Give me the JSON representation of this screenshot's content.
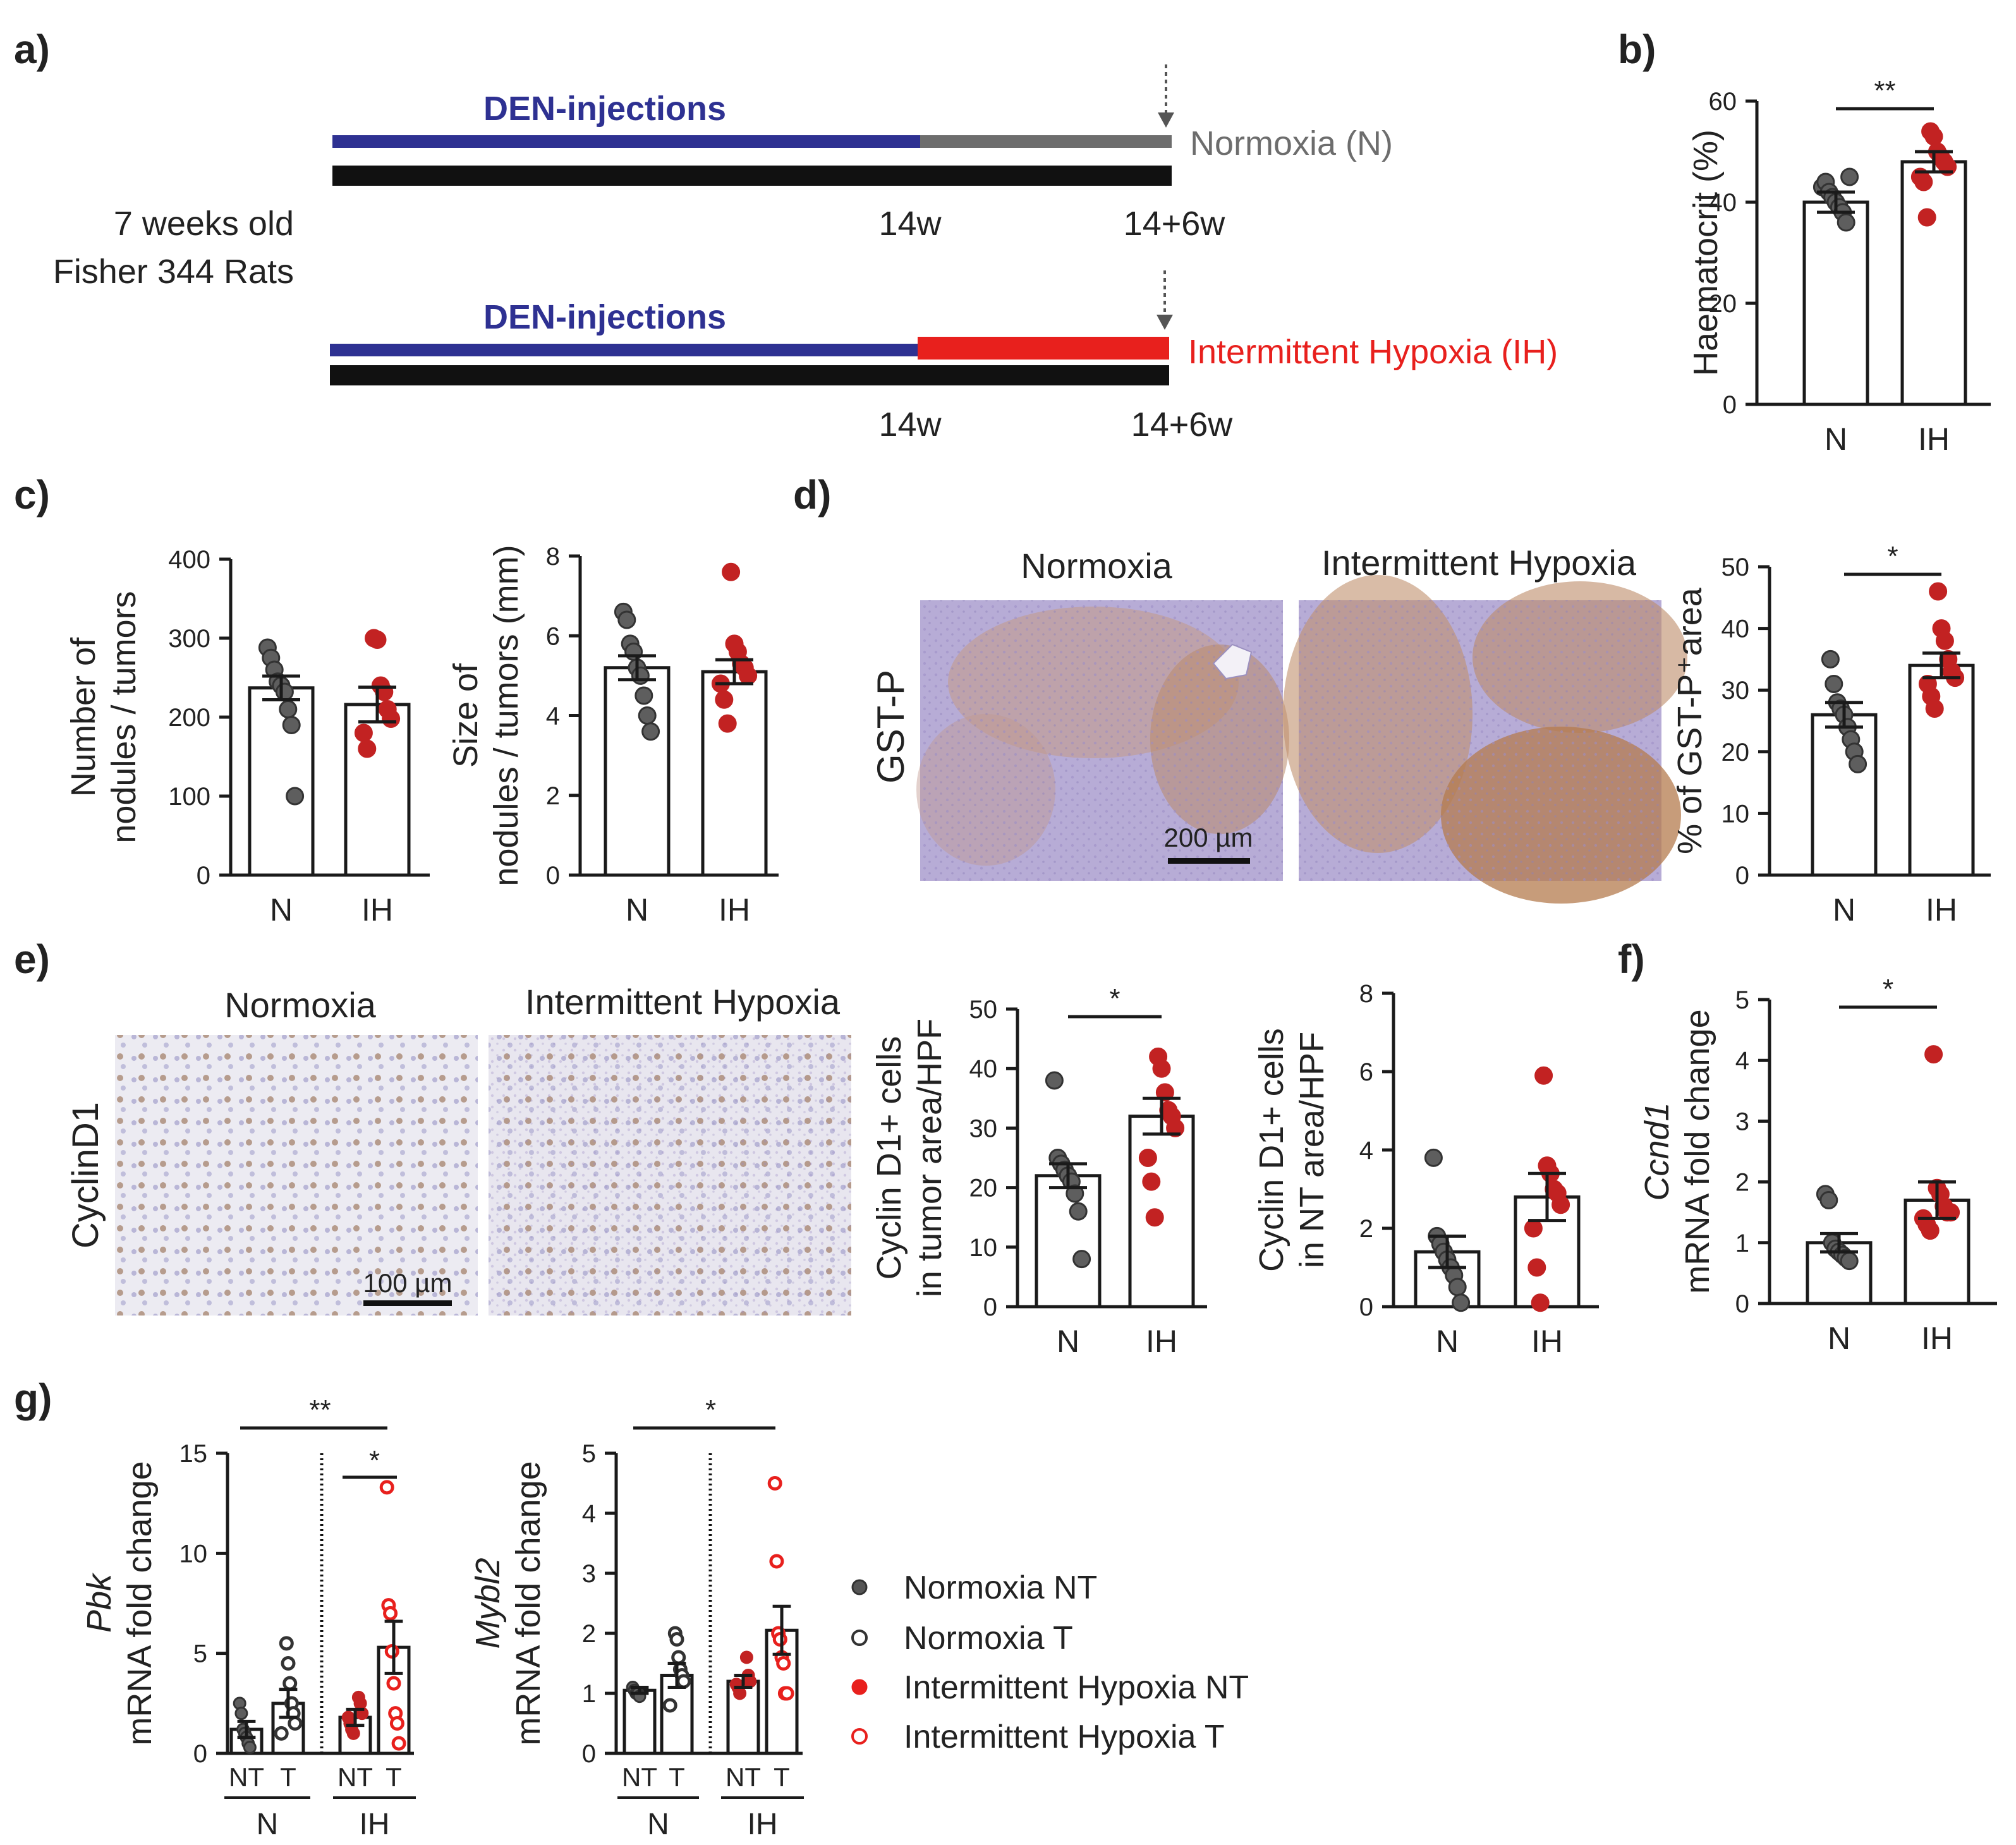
{
  "colors": {
    "axis": "#1a1a1a",
    "den_line": "#2e3192",
    "normoxia_line": "#6d6d6d",
    "hypoxia_line": "#e8201d",
    "normoxia_dot": "#5e5e5e",
    "hypoxia_dot": "#c22222",
    "tissue": "#b8a9d4",
    "stain": "#b07a45"
  },
  "panel_a": {
    "label": "a)",
    "rats_line1": "7 weeks old",
    "rats_line2": "Fisher 344 Rats",
    "den_label": "DEN-injections",
    "normoxia_label": "Normoxia (N)",
    "hypoxia_label": "Intermittent Hypoxia (IH)",
    "t14": "14w",
    "t20": "14+6w"
  },
  "panel_labels": {
    "b": "b)",
    "c": "c)",
    "d": "d)",
    "e": "e)",
    "f": "f)",
    "g": "g)"
  },
  "images": {
    "d_title_left": "Normoxia",
    "d_title_right": "Intermittent Hypoxia",
    "d_side": "GST-P",
    "d_scale": "200 µm",
    "e_title_left": "Normoxia",
    "e_title_right": "Intermittent Hypoxia",
    "e_side": "CyclinD1",
    "e_scale": "100 µm"
  },
  "legend": [
    {
      "label": "Normoxia  NT"
    },
    {
      "label": "Normoxia  T"
    },
    {
      "label": "Intermittent Hypoxia NT"
    },
    {
      "label": "Intermittent Hypoxia T"
    }
  ],
  "chart_data": [
    {
      "id": "b",
      "type": "bar",
      "categories": [
        "N",
        "IH"
      ],
      "values": [
        40,
        48
      ],
      "sem": [
        2,
        2
      ],
      "ylim": [
        0,
        60
      ],
      "yticks": [
        0,
        20,
        40,
        60
      ],
      "ylabel": [
        "Haematocrit (%)"
      ],
      "sig": "**",
      "points": [
        [
          43,
          44,
          42,
          41,
          40,
          39,
          38,
          36,
          45
        ],
        [
          54,
          53,
          50,
          49,
          48,
          47,
          45,
          44,
          37
        ]
      ]
    },
    {
      "id": "c1",
      "type": "bar",
      "categories": [
        "N",
        "IH"
      ],
      "values": [
        237,
        216
      ],
      "sem": [
        15,
        22
      ],
      "ylim": [
        0,
        400
      ],
      "yticks": [
        0,
        100,
        200,
        300,
        400
      ],
      "ylabel": [
        "Number of",
        "nodules / tumors"
      ],
      "sig": "",
      "points": [
        [
          288,
          275,
          260,
          245,
          240,
          232,
          210,
          190,
          100
        ],
        [
          300,
          298,
          240,
          232,
          210,
          198,
          180,
          160
        ]
      ]
    },
    {
      "id": "c2",
      "type": "bar",
      "categories": [
        "N",
        "IH"
      ],
      "values": [
        5.2,
        5.1
      ],
      "sem": [
        0.3,
        0.3
      ],
      "ylim": [
        0,
        8
      ],
      "yticks": [
        0,
        2,
        4,
        6,
        8
      ],
      "ylabel": [
        "Size of",
        "nodules / tumors (mm)"
      ],
      "sig": "",
      "points": [
        [
          6.6,
          6.4,
          5.8,
          5.6,
          5.2,
          5.0,
          4.5,
          4.0,
          3.6
        ],
        [
          7.6,
          5.8,
          5.6,
          5.3,
          5.2,
          5.0,
          4.8,
          4.4,
          3.8
        ]
      ]
    },
    {
      "id": "d",
      "type": "bar",
      "categories": [
        "N",
        "IH"
      ],
      "values": [
        26,
        34
      ],
      "sem": [
        2,
        2
      ],
      "ylim": [
        0,
        50
      ],
      "yticks": [
        0,
        10,
        20,
        30,
        40,
        50
      ],
      "ylabel": [
        "% of GST-P⁺area"
      ],
      "sig": "*",
      "points": [
        [
          35,
          31,
          28,
          27,
          26,
          24,
          22,
          20,
          18
        ],
        [
          46,
          40,
          38,
          35,
          33,
          32,
          31,
          29,
          27
        ]
      ]
    },
    {
      "id": "e1",
      "type": "bar",
      "categories": [
        "N",
        "IH"
      ],
      "values": [
        22,
        32
      ],
      "sem": [
        2,
        3
      ],
      "ylim": [
        0,
        50
      ],
      "yticks": [
        0,
        10,
        20,
        30,
        40,
        50
      ],
      "ylabel": [
        "Cyclin D1+ cells",
        "in tumor area/HPF"
      ],
      "sig": "*",
      "points": [
        [
          38,
          25,
          24,
          23,
          22,
          21,
          19,
          16,
          8
        ],
        [
          42,
          40,
          36,
          33,
          32,
          30,
          25,
          21,
          15
        ]
      ]
    },
    {
      "id": "e2",
      "type": "bar",
      "categories": [
        "N",
        "IH"
      ],
      "values": [
        1.4,
        2.8
      ],
      "sem": [
        0.4,
        0.6
      ],
      "ylim": [
        0,
        8
      ],
      "yticks": [
        0,
        2,
        4,
        6,
        8
      ],
      "ylabel": [
        "Cyclin D1+ cells",
        "in NT area/HPF"
      ],
      "sig": "",
      "points": [
        [
          3.8,
          1.8,
          1.6,
          1.4,
          1.2,
          1.0,
          0.8,
          0.5,
          0.1
        ],
        [
          5.9,
          3.6,
          3.4,
          3.0,
          2.9,
          2.6,
          2.0,
          1.0,
          0.1
        ]
      ]
    },
    {
      "id": "f",
      "type": "bar",
      "categories": [
        "N",
        "IH"
      ],
      "values": [
        1.0,
        1.7
      ],
      "sem": [
        0.15,
        0.3
      ],
      "ylim": [
        0,
        5
      ],
      "yticks": [
        0,
        1,
        2,
        3,
        4,
        5
      ],
      "ylabel": [
        "Ccnd1",
        "mRNA fold change"
      ],
      "sig": "*",
      "points": [
        [
          1.8,
          1.7,
          1.0,
          0.9,
          0.85,
          0.8,
          0.75,
          0.7
        ],
        [
          4.1,
          1.9,
          1.8,
          1.6,
          1.5,
          1.5,
          1.4,
          1.3,
          1.2
        ]
      ]
    },
    {
      "id": "g1",
      "type": "bar",
      "categories": [
        "NT",
        "T",
        "NT",
        "T"
      ],
      "groups": [
        "N",
        "IH"
      ],
      "values": [
        1.2,
        2.5,
        1.8,
        5.3
      ],
      "sem": [
        0.4,
        0.7,
        0.4,
        1.3
      ],
      "ylim": [
        0,
        15
      ],
      "yticks": [
        0,
        5,
        10,
        15
      ],
      "ylabel": [
        "Pbk",
        "mRNA fold change"
      ],
      "sig_long": "**",
      "sig_short": "*",
      "points": [
        [
          2.5,
          2.0,
          1.2,
          1.0,
          0.8,
          0.5,
          0.3
        ],
        [
          5.5,
          4.5,
          3.5,
          2.5,
          2.0,
          1.5,
          1.0
        ],
        [
          2.8,
          2.5,
          2.0,
          1.8,
          1.5,
          1.2,
          1.0
        ],
        [
          13.3,
          7.4,
          7.0,
          5.1,
          3.5,
          2.0,
          1.5,
          0.5
        ]
      ]
    },
    {
      "id": "g2",
      "type": "bar",
      "categories": [
        "NT",
        "T",
        "NT",
        "T"
      ],
      "groups": [
        "N",
        "IH"
      ],
      "values": [
        1.05,
        1.3,
        1.2,
        2.05
      ],
      "sem": [
        0.05,
        0.2,
        0.1,
        0.4
      ],
      "ylim": [
        0,
        5
      ],
      "yticks": [
        0,
        1,
        2,
        3,
        4,
        5
      ],
      "ylabel": [
        "Mybl2",
        "mRNA fold change"
      ],
      "sig_long": "*",
      "sig_short": "",
      "points": [
        [
          1.1,
          1.05,
          1.0,
          1.0,
          0.95
        ],
        [
          2.0,
          1.9,
          1.6,
          1.4,
          1.3,
          1.2,
          0.8
        ],
        [
          1.6,
          1.3,
          1.2,
          1.15,
          1.1,
          1.0
        ],
        [
          4.5,
          3.2,
          2.0,
          1.9,
          1.6,
          1.5,
          1.0,
          1.0
        ]
      ]
    }
  ]
}
